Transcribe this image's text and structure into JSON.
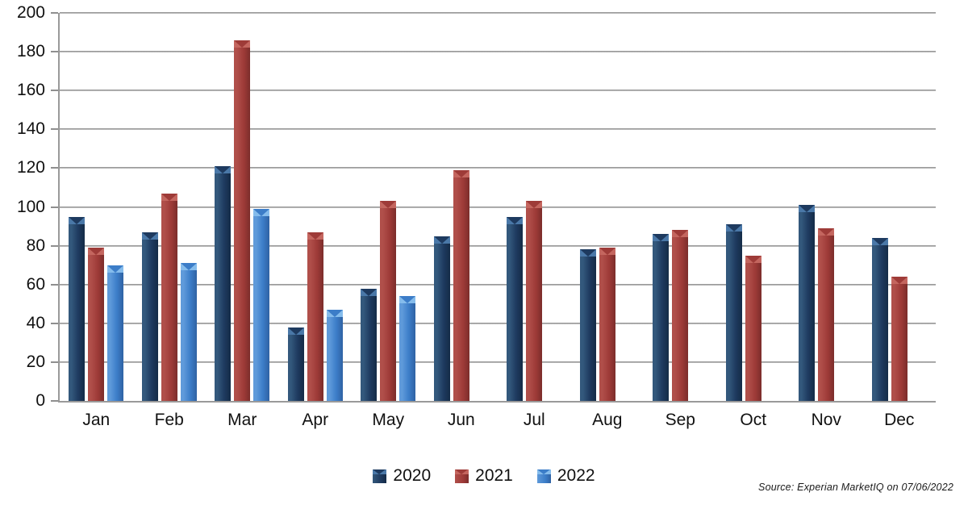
{
  "source_note": "Source: Experian MarketIQ on  07/06/2022",
  "colors": {
    "background": "#ffffff",
    "gridline": "#8f8f8f",
    "axis": "#9a9a9a",
    "text": "#111111"
  },
  "chart_data": {
    "type": "bar",
    "title": "",
    "xlabel": "",
    "ylabel": "",
    "categories": [
      "Jan",
      "Feb",
      "Mar",
      "Apr",
      "May",
      "Jun",
      "Jul",
      "Aug",
      "Sep",
      "Oct",
      "Nov",
      "Dec"
    ],
    "series": [
      {
        "name": "2020",
        "color_main": "#1e3a5f",
        "color_light": "#33587c",
        "color_edge": "#142b47",
        "color_cap": "#4a78a8",
        "values": [
          95,
          87,
          121,
          38,
          58,
          85,
          95,
          78,
          86,
          91,
          101,
          84
        ]
      },
      {
        "name": "2021",
        "color_main": "#9e3b38",
        "color_light": "#b04f4a",
        "color_edge": "#7c2d2b",
        "color_cap": "#c4665f",
        "values": [
          79,
          107,
          186,
          87,
          103,
          119,
          103,
          79,
          88,
          75,
          89,
          64
        ]
      },
      {
        "name": "2022",
        "color_main": "#3c7dc8",
        "color_light": "#5f9ada",
        "color_edge": "#2f62a3",
        "color_cap": "#85bcec",
        "values": [
          70,
          71,
          99,
          47,
          54,
          null,
          null,
          null,
          null,
          null,
          null,
          null
        ]
      }
    ],
    "ylim": [
      0,
      200
    ],
    "ytick_step": 20,
    "grid": true,
    "legend_position": "bottom"
  }
}
